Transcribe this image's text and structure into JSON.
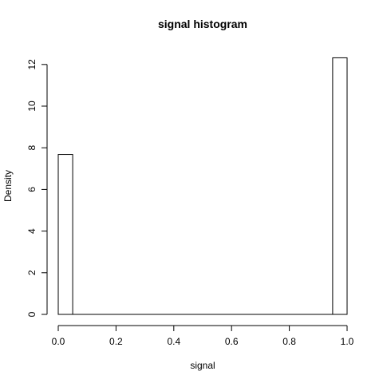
{
  "chart_data": {
    "type": "bar",
    "title": "signal  histogram",
    "xlabel": "signal",
    "ylabel": "Density",
    "xlim": [
      0.0,
      1.0
    ],
    "ylim": [
      0,
      12.3
    ],
    "x_ticks": [
      0.0,
      0.2,
      0.4,
      0.6,
      0.8,
      1.0
    ],
    "x_tick_labels": [
      "0.0",
      "0.2",
      "0.4",
      "0.6",
      "0.8",
      "1.0"
    ],
    "y_ticks": [
      0,
      2,
      4,
      6,
      8,
      10,
      12
    ],
    "y_tick_labels": [
      "0",
      "2",
      "4",
      "6",
      "8",
      "10",
      "12"
    ],
    "bin_width": 0.05,
    "bins": [
      {
        "start": 0.0,
        "end": 0.05,
        "value": 7.68
      },
      {
        "start": 0.05,
        "end": 0.1,
        "value": 0
      },
      {
        "start": 0.1,
        "end": 0.15,
        "value": 0
      },
      {
        "start": 0.15,
        "end": 0.2,
        "value": 0
      },
      {
        "start": 0.2,
        "end": 0.25,
        "value": 0
      },
      {
        "start": 0.25,
        "end": 0.3,
        "value": 0
      },
      {
        "start": 0.3,
        "end": 0.35,
        "value": 0
      },
      {
        "start": 0.35,
        "end": 0.4,
        "value": 0
      },
      {
        "start": 0.4,
        "end": 0.45,
        "value": 0
      },
      {
        "start": 0.45,
        "end": 0.5,
        "value": 0
      },
      {
        "start": 0.5,
        "end": 0.55,
        "value": 0
      },
      {
        "start": 0.55,
        "end": 0.6,
        "value": 0
      },
      {
        "start": 0.6,
        "end": 0.65,
        "value": 0
      },
      {
        "start": 0.65,
        "end": 0.7,
        "value": 0
      },
      {
        "start": 0.7,
        "end": 0.75,
        "value": 0
      },
      {
        "start": 0.75,
        "end": 0.8,
        "value": 0
      },
      {
        "start": 0.8,
        "end": 0.85,
        "value": 0
      },
      {
        "start": 0.85,
        "end": 0.9,
        "value": 0
      },
      {
        "start": 0.9,
        "end": 0.95,
        "value": 0
      },
      {
        "start": 0.95,
        "end": 1.0,
        "value": 12.32
      }
    ],
    "grid": false,
    "legend": "none",
    "bar_fill": "#ffffff",
    "bar_stroke": "#000000"
  }
}
